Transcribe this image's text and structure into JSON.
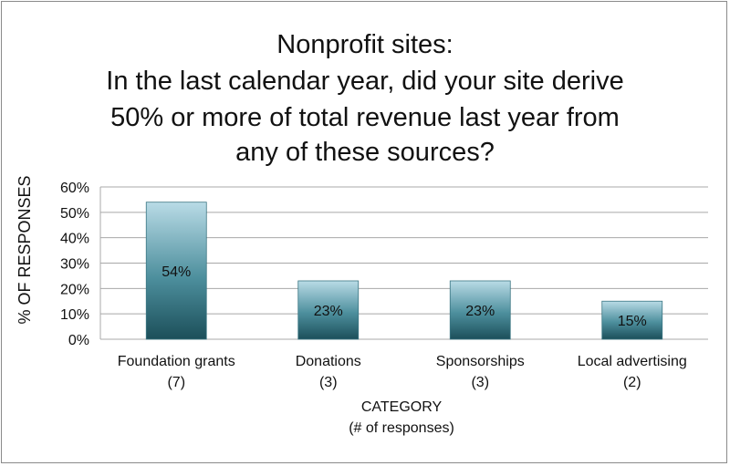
{
  "chart_data": {
    "type": "bar",
    "title_lines": [
      "Nonprofit sites:",
      "In the last calendar year, did your site derive",
      "50% or more of total revenue last year from",
      "any of these sources?"
    ],
    "categories": [
      {
        "name": "Foundation grants",
        "count": "(7)"
      },
      {
        "name": "Donations",
        "count": "(3)"
      },
      {
        "name": "Sponsorships",
        "count": "(3)"
      },
      {
        "name": "Local advertising",
        "count": "(2)"
      }
    ],
    "values": [
      54,
      23,
      23,
      15
    ],
    "data_labels": [
      "54%",
      "23%",
      "23%",
      "15%"
    ],
    "xlabel_lines": [
      "CATEGORY",
      "(# of responses)"
    ],
    "ylabel": "% OF RESPONSES",
    "ylim": [
      0,
      60
    ],
    "yticks": [
      0,
      10,
      20,
      30,
      40,
      50,
      60
    ],
    "ytick_labels": [
      "0%",
      "10%",
      "20%",
      "30%",
      "40%",
      "50%",
      "60%"
    ],
    "grid": true,
    "legend": "none",
    "colors": {
      "bar_top": "#b9dbe6",
      "bar_mid": "#4d8f9d",
      "bar_bottom": "#1c4f5a",
      "bar_stroke": "#3b7683",
      "gridline": "#a8a8a8"
    }
  }
}
